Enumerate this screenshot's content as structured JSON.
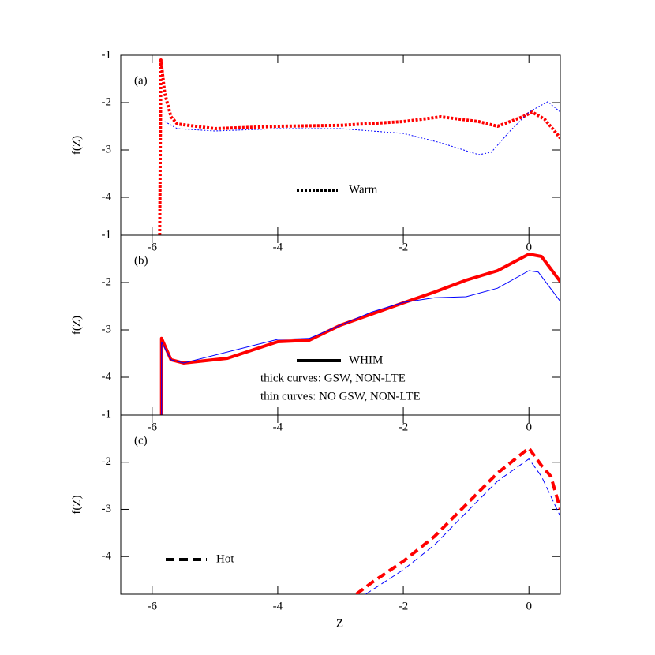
{
  "chart_data": [
    {
      "type": "line",
      "label": "(a)",
      "ylabel": "f(Z)",
      "xlim": [
        -6.5,
        0.5
      ],
      "ylim": [
        -4.8,
        -1
      ],
      "xticks": [
        -6,
        -4,
        -2,
        0
      ],
      "yticks": [
        -1,
        -2,
        -3,
        -4
      ],
      "legend": {
        "label": "Warm",
        "dash": "dotted"
      },
      "series": [
        {
          "color": "#ff0000",
          "linewidth": 4,
          "dash": "dotted",
          "x": [
            -5.88,
            -5.86,
            -5.8,
            -5.7,
            -5.6,
            -5.0,
            -4.0,
            -3.0,
            -2.0,
            -1.4,
            -0.8,
            -0.5,
            -0.1,
            0.05,
            0.25,
            0.5
          ],
          "values": [
            -4.8,
            -1.1,
            -1.8,
            -2.3,
            -2.45,
            -2.55,
            -2.5,
            -2.48,
            -2.4,
            -2.3,
            -2.4,
            -2.5,
            -2.3,
            -2.2,
            -2.35,
            -2.75
          ]
        },
        {
          "color": "#0000ff",
          "linewidth": 1,
          "dash": "dotted",
          "x": [
            -5.8,
            -5.6,
            -5.0,
            -4.0,
            -3.0,
            -2.0,
            -1.4,
            -0.8,
            -0.6,
            -0.3,
            0.0,
            0.3,
            0.5
          ],
          "values": [
            -2.4,
            -2.55,
            -2.6,
            -2.55,
            -2.55,
            -2.65,
            -2.85,
            -3.1,
            -3.05,
            -2.6,
            -2.2,
            -1.98,
            -2.2
          ]
        }
      ]
    },
    {
      "type": "line",
      "label": "(b)",
      "ylabel": "f(Z)",
      "xlim": [
        -6.5,
        0.5
      ],
      "ylim": [
        -4.8,
        -1
      ],
      "xticks": [
        -6,
        -4,
        -2,
        0
      ],
      "yticks": [
        -1,
        -2,
        -3,
        -4
      ],
      "legend": {
        "label": "WHIM",
        "dash": "solid"
      },
      "annotations": [
        "thick curves: GSW, NON-LTE",
        "thin curves: NO GSW, NON-LTE"
      ],
      "series": [
        {
          "color": "#ff0000",
          "linewidth": 4,
          "dash": "solid",
          "x": [
            -5.85,
            -5.85,
            -5.7,
            -5.5,
            -4.8,
            -4.0,
            -3.5,
            -3.0,
            -2.0,
            -1.5,
            -1.0,
            -0.5,
            0.0,
            0.2,
            0.5
          ],
          "values": [
            -4.8,
            -3.18,
            -3.63,
            -3.7,
            -3.6,
            -3.25,
            -3.22,
            -2.9,
            -2.43,
            -2.2,
            -1.95,
            -1.75,
            -1.4,
            -1.45,
            -1.98
          ]
        },
        {
          "color": "#0000ff",
          "linewidth": 1,
          "dash": "solid",
          "x": [
            -5.85,
            -5.85,
            -5.7,
            -5.5,
            -4.0,
            -3.5,
            -2.5,
            -2.0,
            -1.5,
            -1.0,
            -0.5,
            0.0,
            0.15,
            0.5
          ],
          "values": [
            -4.8,
            -3.26,
            -3.63,
            -3.7,
            -3.2,
            -3.18,
            -2.62,
            -2.42,
            -2.32,
            -2.3,
            -2.12,
            -1.75,
            -1.78,
            -2.4
          ]
        }
      ]
    },
    {
      "type": "line",
      "label": "(c)",
      "ylabel": "f(Z)",
      "xlabel": "Z",
      "xlim": [
        -6.5,
        0.5
      ],
      "ylim": [
        -4.8,
        -1
      ],
      "xticks": [
        -6,
        -4,
        -2,
        0
      ],
      "yticks": [
        -1,
        -2,
        -3,
        -4
      ],
      "legend": {
        "label": "Hot",
        "dash": "dashed"
      },
      "series": [
        {
          "color": "#ff0000",
          "linewidth": 4,
          "dash": "dashed",
          "x": [
            -2.75,
            -2.5,
            -2.0,
            -1.5,
            -1.0,
            -0.5,
            0.0,
            0.2,
            0.35,
            0.5
          ],
          "values": [
            -4.8,
            -4.55,
            -4.1,
            -3.57,
            -2.9,
            -2.23,
            -1.7,
            -2.07,
            -2.3,
            -3.0
          ]
        },
        {
          "color": "#0000ff",
          "linewidth": 1,
          "dash": "dashed",
          "x": [
            -2.6,
            -2.0,
            -1.5,
            -1.0,
            -0.5,
            0.0,
            0.2,
            0.5
          ],
          "values": [
            -4.8,
            -4.28,
            -3.75,
            -3.07,
            -2.4,
            -1.93,
            -2.3,
            -3.15
          ]
        }
      ]
    }
  ]
}
